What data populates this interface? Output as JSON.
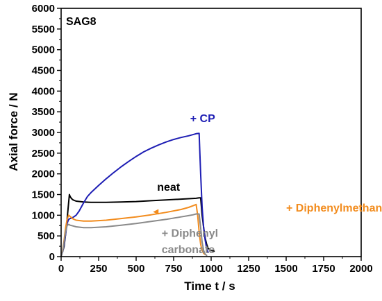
{
  "chart_data": {
    "type": "line",
    "panel_label": "SAG8",
    "xlabel": "Time t / s",
    "ylabel": "Axial force / N",
    "xlim": [
      0,
      2000
    ],
    "ylim": [
      0,
      6000
    ],
    "x_ticks": [
      0,
      250,
      500,
      750,
      1000,
      1250,
      1500,
      1750,
      2000
    ],
    "y_ticks": [
      0,
      500,
      1000,
      1500,
      2000,
      2500,
      3000,
      3500,
      4000,
      4500,
      5000,
      5500,
      6000
    ],
    "series": [
      {
        "name": "neat",
        "color": "#000000",
        "x": [
          0,
          10,
          20,
          30,
          40,
          50,
          55,
          60,
          70,
          80,
          100,
          150,
          200,
          300,
          400,
          500,
          600,
          700,
          800,
          900,
          920,
          930,
          940,
          950,
          960,
          970,
          980,
          1000,
          1020
        ],
        "y": [
          0,
          120,
          250,
          550,
          900,
          1300,
          1500,
          1450,
          1400,
          1370,
          1340,
          1320,
          1310,
          1310,
          1320,
          1330,
          1350,
          1370,
          1390,
          1410,
          1420,
          1420,
          1000,
          700,
          450,
          300,
          200,
          150,
          130
        ]
      },
      {
        "name": "+ CP",
        "color": "#1e1eb4",
        "x": [
          0,
          10,
          20,
          30,
          40,
          50,
          60,
          70,
          80,
          100,
          120,
          150,
          175,
          200,
          250,
          300,
          350,
          400,
          450,
          500,
          550,
          600,
          650,
          700,
          750,
          800,
          850,
          900,
          920,
          930,
          940,
          950,
          960,
          970,
          980
        ],
        "y": [
          0,
          120,
          300,
          550,
          800,
          900,
          920,
          930,
          950,
          1000,
          1100,
          1300,
          1450,
          1550,
          1720,
          1880,
          2030,
          2170,
          2300,
          2420,
          2530,
          2620,
          2700,
          2770,
          2830,
          2880,
          2920,
          2970,
          2980,
          2000,
          1200,
          700,
          400,
          200,
          100
        ]
      },
      {
        "name": "+ Diphenylmethanol",
        "color": "#f28c1e",
        "x": [
          0,
          10,
          20,
          30,
          40,
          50,
          60,
          80,
          100,
          150,
          200,
          300,
          400,
          500,
          600,
          700,
          800,
          850,
          880,
          900,
          910,
          920,
          930,
          940,
          950,
          960
        ],
        "y": [
          0,
          150,
          400,
          700,
          900,
          1000,
          970,
          910,
          880,
          860,
          860,
          880,
          920,
          960,
          1010,
          1070,
          1140,
          1190,
          1230,
          1260,
          1000,
          600,
          300,
          150,
          80,
          50
        ]
      },
      {
        "name": "+ Diphenyl carbonate",
        "color": "#8a8a8a",
        "x": [
          0,
          10,
          20,
          30,
          40,
          50,
          60,
          80,
          100,
          150,
          200,
          300,
          400,
          500,
          600,
          700,
          800,
          850,
          880,
          900,
          920,
          930,
          940,
          950,
          960,
          970
        ],
        "y": [
          0,
          120,
          350,
          600,
          750,
          780,
          760,
          740,
          720,
          700,
          700,
          720,
          760,
          800,
          850,
          900,
          960,
          990,
          1010,
          1030,
          1030,
          700,
          350,
          150,
          60,
          30
        ]
      }
    ],
    "annotations": [
      {
        "text": "+ CP",
        "color": "#1e1eb4",
        "x": 860,
        "y": 3250
      },
      {
        "text": "neat",
        "color": "#000000",
        "x": 640,
        "y": 1590
      },
      {
        "text": "+ Diphenylmethanol",
        "color": "#f28c1e",
        "x": 1500,
        "y": 1090
      },
      {
        "text": "+ Diphenyl",
        "color": "#8a8a8a",
        "x": 670,
        "y": 480
      },
      {
        "text": "carbonate",
        "color": "#8a8a8a",
        "x": 670,
        "y": 80
      }
    ],
    "arrow": {
      "color": "#f28c1e",
      "x": 640,
      "y": 1080
    }
  }
}
